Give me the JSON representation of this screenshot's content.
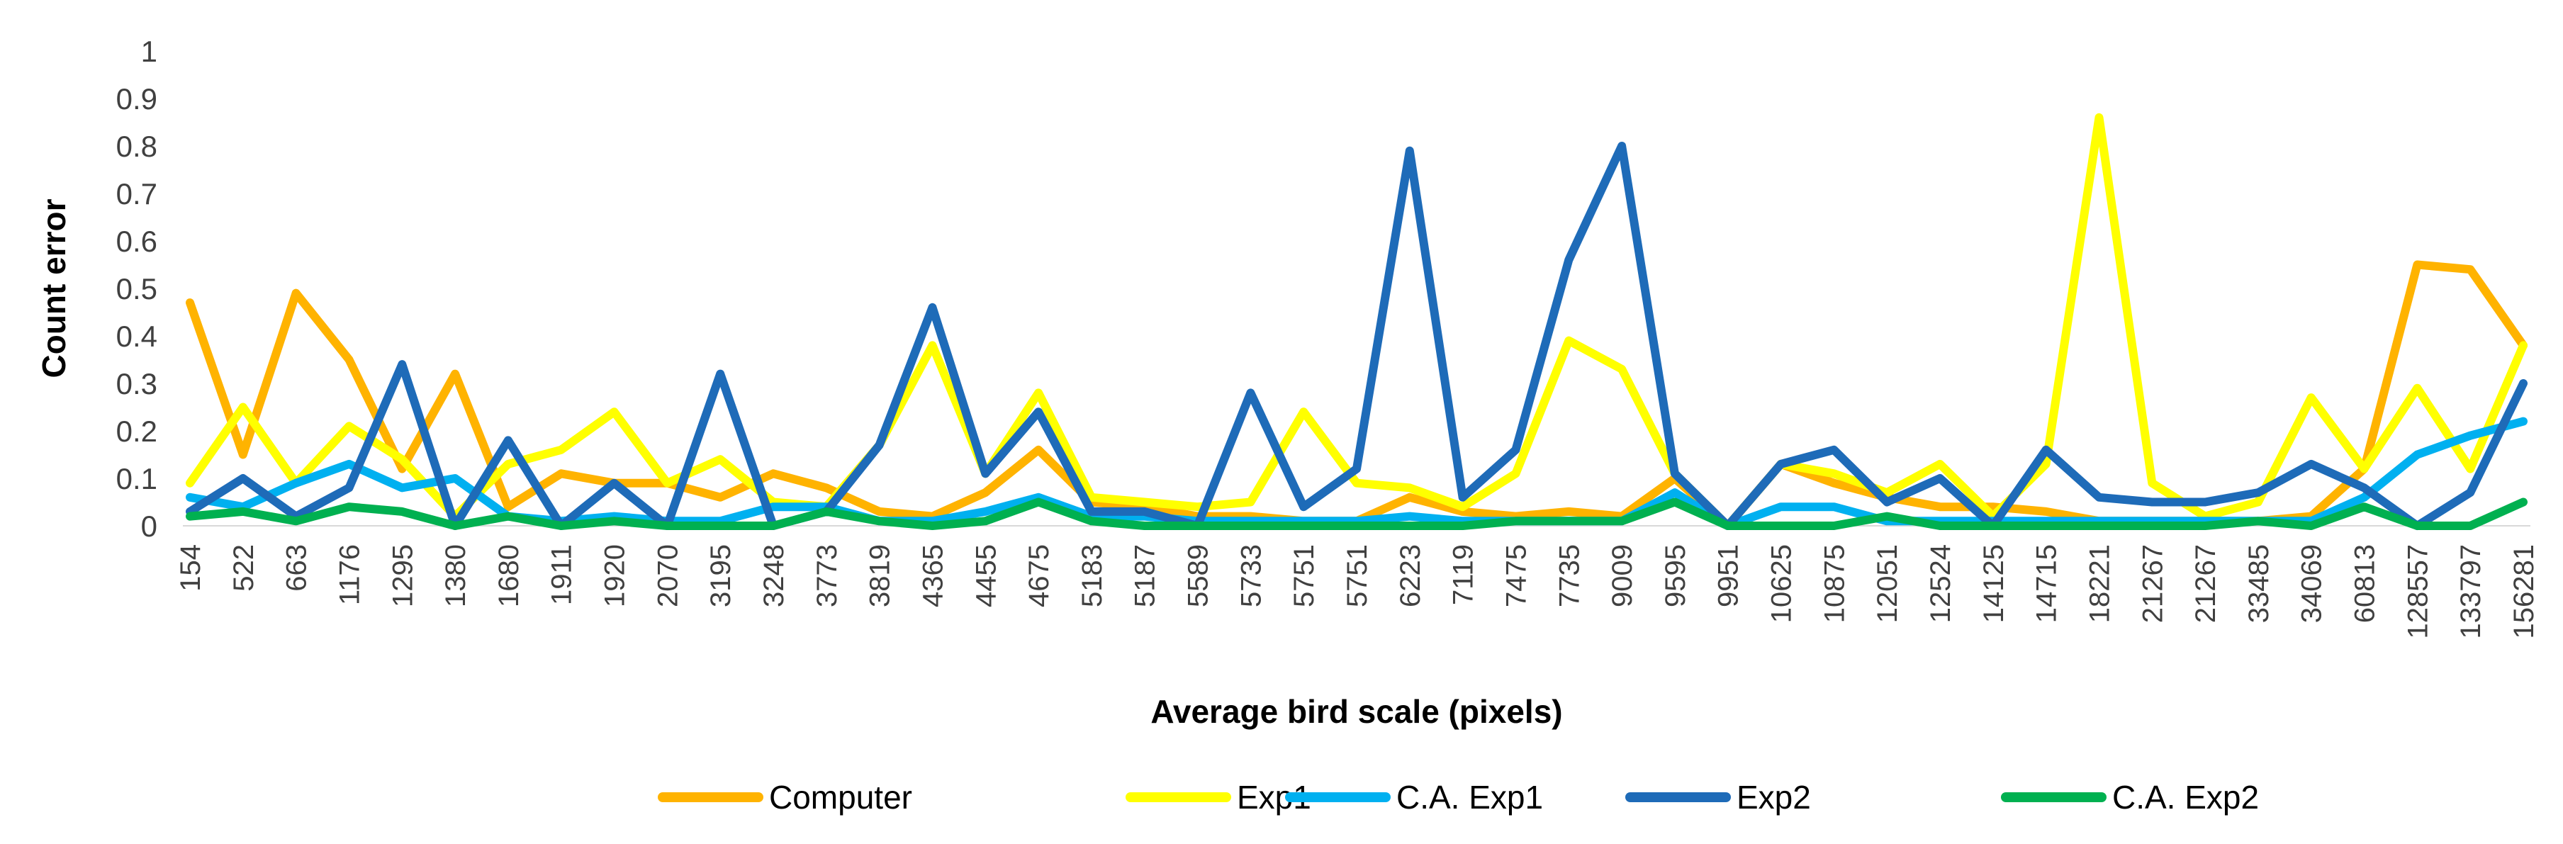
{
  "chart_data": {
    "type": "line",
    "title": "",
    "xlabel": "Average bird scale (pixels)",
    "ylabel": "Count error",
    "ylim": [
      0,
      1
    ],
    "y_ticks": [
      "0",
      "0.1",
      "0.2",
      "0.3",
      "0.4",
      "0.5",
      "0.6",
      "0.7",
      "0.8",
      "0.9",
      "1"
    ],
    "grid": false,
    "legend_position": "bottom",
    "categories": [
      "154",
      "522",
      "663",
      "1176",
      "1295",
      "1380",
      "1680",
      "1911",
      "1920",
      "2070",
      "3195",
      "3248",
      "3773",
      "3819",
      "4365",
      "4455",
      "4675",
      "5183",
      "5187",
      "5589",
      "5733",
      "5751",
      "5751",
      "6223",
      "7119",
      "7475",
      "7735",
      "9009",
      "9595",
      "9951",
      "10625",
      "10875",
      "12051",
      "12524",
      "14125",
      "14715",
      "18221",
      "21267",
      "21267",
      "33485",
      "34069",
      "60813",
      "128557",
      "133797",
      "156281"
    ],
    "series": [
      {
        "name": "Computer",
        "color": "#FFB300",
        "values": [
          0.47,
          0.15,
          0.49,
          0.35,
          0.12,
          0.32,
          0.04,
          0.11,
          0.09,
          0.09,
          0.06,
          0.11,
          0.08,
          0.03,
          0.02,
          0.07,
          0.16,
          0.05,
          0.04,
          0.02,
          0.02,
          0.01,
          0.01,
          0.06,
          0.03,
          0.02,
          0.03,
          0.02,
          0.1,
          0.0,
          0.13,
          0.09,
          0.06,
          0.04,
          0.04,
          0.03,
          0.01,
          0.01,
          0.01,
          0.01,
          0.02,
          0.12,
          0.55,
          0.54,
          0.38
        ]
      },
      {
        "name": "Exp1",
        "color": "#FFFF00",
        "values": [
          0.09,
          0.25,
          0.09,
          0.21,
          0.14,
          0.02,
          0.13,
          0.16,
          0.24,
          0.09,
          0.14,
          0.05,
          0.04,
          0.17,
          0.38,
          0.11,
          0.28,
          0.06,
          0.05,
          0.04,
          0.05,
          0.24,
          0.09,
          0.08,
          0.04,
          0.11,
          0.39,
          0.33,
          0.11,
          0.0,
          0.13,
          0.11,
          0.07,
          0.13,
          0.02,
          0.13,
          0.86,
          0.09,
          0.02,
          0.05,
          0.27,
          0.12,
          0.29,
          0.12,
          0.38
        ]
      },
      {
        "name": "C.A. Exp1",
        "color": "#00B0F0",
        "values": [
          0.06,
          0.04,
          0.09,
          0.13,
          0.08,
          0.1,
          0.02,
          0.01,
          0.02,
          0.01,
          0.01,
          0.04,
          0.04,
          0.01,
          0.01,
          0.03,
          0.06,
          0.02,
          0.02,
          0.01,
          0.01,
          0.01,
          0.01,
          0.02,
          0.01,
          0.01,
          0.01,
          0.01,
          0.07,
          0.0,
          0.04,
          0.04,
          0.01,
          0.01,
          0.01,
          0.01,
          0.01,
          0.01,
          0.01,
          0.01,
          0.01,
          0.06,
          0.15,
          0.19,
          0.22
        ]
      },
      {
        "name": "Exp2",
        "color": "#1E6BB8",
        "values": [
          0.03,
          0.1,
          0.02,
          0.08,
          0.34,
          0.0,
          0.18,
          0.0,
          0.09,
          0.0,
          0.32,
          0.0,
          0.03,
          0.17,
          0.46,
          0.11,
          0.24,
          0.03,
          0.03,
          0.0,
          0.28,
          0.04,
          0.12,
          0.79,
          0.06,
          0.16,
          0.56,
          0.8,
          0.11,
          0.0,
          0.13,
          0.16,
          0.05,
          0.1,
          0.0,
          0.16,
          0.06,
          0.05,
          0.05,
          0.07,
          0.13,
          0.08,
          0.0,
          0.07,
          0.3
        ]
      },
      {
        "name": "C.A. Exp2",
        "color": "#00B050",
        "values": [
          0.02,
          0.03,
          0.01,
          0.04,
          0.03,
          0.0,
          0.02,
          0.0,
          0.01,
          0.0,
          0.0,
          0.0,
          0.03,
          0.01,
          0.0,
          0.01,
          0.05,
          0.01,
          0.0,
          0.0,
          0.0,
          0.0,
          0.0,
          0.0,
          0.0,
          0.01,
          0.01,
          0.01,
          0.05,
          0.0,
          0.0,
          0.0,
          0.02,
          0.0,
          0.0,
          0.0,
          0.0,
          0.0,
          0.0,
          0.01,
          0.0,
          0.04,
          0.0,
          0.0,
          0.05
        ]
      }
    ]
  }
}
